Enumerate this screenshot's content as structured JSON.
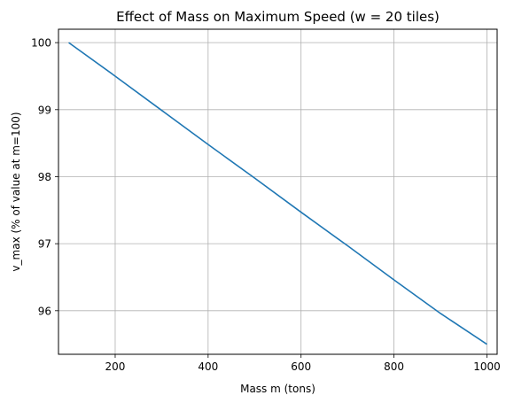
{
  "chart_data": {
    "type": "line",
    "title": "Effect of Mass on Maximum Speed (w = 20 tiles)",
    "xlabel": "Mass m (tons)",
    "ylabel": "v_max (% of value at m=100)",
    "xlim": [
      78,
      1022
    ],
    "ylim": [
      95.35,
      100.2
    ],
    "xticks": [
      200,
      400,
      600,
      800,
      1000
    ],
    "xtick_labels": [
      "200",
      "400",
      "600",
      "800",
      "1000"
    ],
    "yticks": [
      96,
      97,
      98,
      99,
      100
    ],
    "ytick_labels": [
      "96",
      "97",
      "98",
      "99",
      "100"
    ],
    "grid": true,
    "series": [
      {
        "color": "#1f77b4",
        "x": [
          100,
          200,
          300,
          400,
          500,
          600,
          700,
          800,
          900,
          1000
        ],
        "y": [
          100.0,
          99.5,
          98.99,
          98.48,
          97.98,
          97.47,
          96.97,
          96.46,
          95.96,
          95.5
        ]
      }
    ]
  }
}
